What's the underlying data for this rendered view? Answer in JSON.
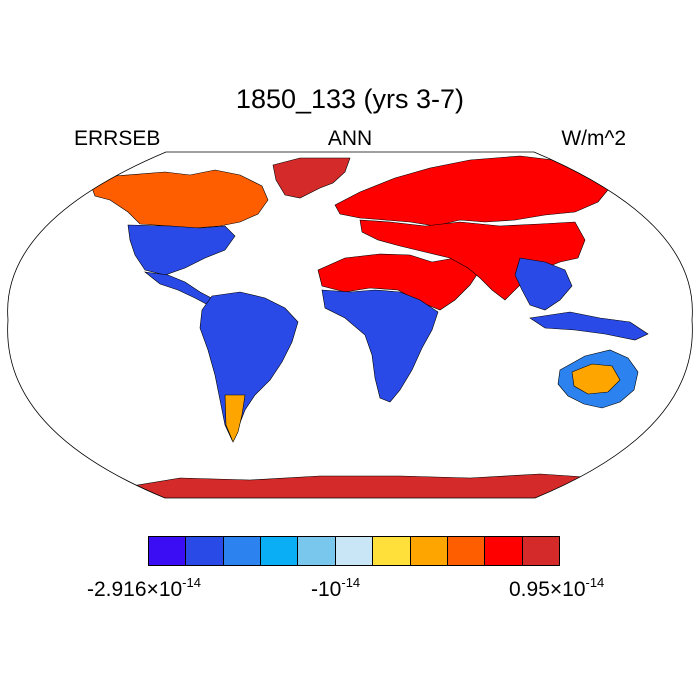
{
  "plot": {
    "title": "1850_133 (yrs 3-7)",
    "left_label": "ERRSEB",
    "center_label": "ANN",
    "right_label": "W/m^2"
  },
  "colorbar": {
    "colors": [
      "#3a0df5",
      "#2a4ae8",
      "#2c82ee",
      "#0aaef5",
      "#7ac7ee",
      "#c8e6f6",
      "#ffe03b",
      "#ffa500",
      "#ff5e00",
      "#ff0000",
      "#d52a2a"
    ],
    "labels": {
      "min_mantissa": "-2.916",
      "min_times": "×",
      "min_base": "10",
      "min_exp": "-14",
      "mid_base": "-10",
      "mid_exp": "-14",
      "max_mantissa": "0.95",
      "max_times": "×",
      "max_base": "10",
      "max_exp": "-14"
    }
  },
  "map": {
    "projection": "Robinson",
    "ocean_color": "#ffffff",
    "land_colors": {
      "antarctica": "#d52a2a",
      "greenland": "#d52a2a",
      "north_america_north": "#ff5e00",
      "north_america_east": "#2a4ae8",
      "central_america": "#2a4ae8",
      "south_america": "#2a4ae8",
      "patagonia": "#ffa500",
      "sahara_arabia": "#ff0000",
      "sub_saharan_africa": "#2a4ae8",
      "eurasia_north": "#ff0000",
      "eurasia_south": "#ff0000",
      "southeast_asia": "#2a4ae8",
      "indonesia": "#2a4ae8",
      "australia": "#2c82ee",
      "australia_interior": "#ffa500"
    }
  }
}
